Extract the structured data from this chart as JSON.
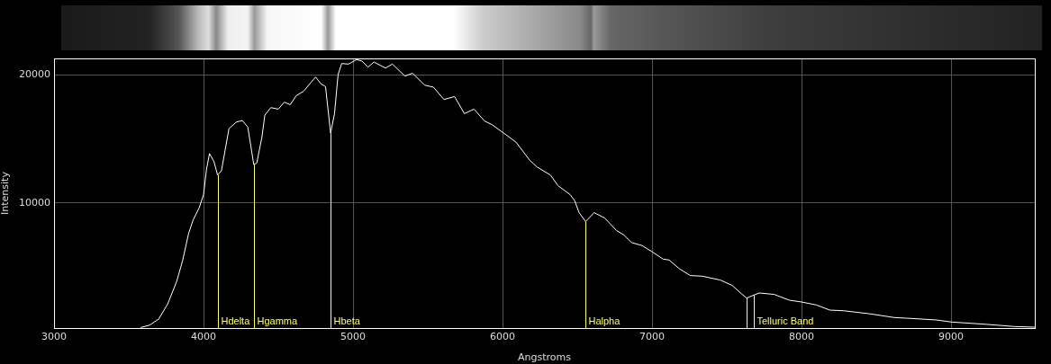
{
  "chart_data": {
    "type": "line",
    "xlabel": "Angstroms",
    "ylabel": "Intensity",
    "x": [
      3580,
      3640,
      3700,
      3760,
      3820,
      3860,
      3900,
      3930,
      3970,
      4000,
      4020,
      4040,
      4070,
      4094,
      4120,
      4170,
      4220,
      4260,
      4296,
      4336,
      4356,
      4390,
      4410,
      4450,
      4500,
      4540,
      4580,
      4620,
      4670,
      4720,
      4750,
      4784,
      4816,
      4850,
      4876,
      4900,
      4924,
      4970,
      5024,
      5060,
      5100,
      5140,
      5217,
      5263,
      5347,
      5398,
      5478,
      5538,
      5608,
      5679,
      5745,
      5809,
      5880,
      5930,
      6000,
      6090,
      6181,
      6231,
      6321,
      6371,
      6452,
      6482,
      6512,
      6556,
      6612,
      6683,
      6763,
      6813,
      6863,
      6934,
      7004,
      7074,
      7114,
      7185,
      7255,
      7335,
      7456,
      7536,
      7596,
      7633,
      7681,
      7717,
      7817,
      7918,
      8000,
      8098,
      8189,
      8279,
      8450,
      8620,
      8701,
      8902,
      9002,
      9223,
      9424,
      9560
    ],
    "series": [
      {
        "color": "#ffffff",
        "values": [
          300,
          490,
          960,
          2130,
          3880,
          5510,
          7620,
          8670,
          9600,
          10650,
          12640,
          13850,
          13220,
          12170,
          12520,
          15790,
          16310,
          16420,
          15910,
          12990,
          13110,
          15090,
          16840,
          17430,
          17310,
          17850,
          17660,
          18360,
          18710,
          19410,
          19810,
          19300,
          19060,
          15440,
          16960,
          20000,
          20860,
          20820,
          21170,
          21050,
          20580,
          20980,
          20510,
          20820,
          19880,
          20110,
          19180,
          19020,
          18060,
          18290,
          16960,
          17310,
          16380,
          16100,
          15510,
          14740,
          13340,
          12800,
          12170,
          11350,
          10650,
          10190,
          9250,
          8550,
          9250,
          8830,
          7850,
          7500,
          6920,
          6680,
          6170,
          5630,
          5560,
          4860,
          4350,
          4300,
          4000,
          3580,
          2950,
          2590,
          2830,
          2990,
          2880,
          2430,
          2290,
          2060,
          1660,
          1610,
          1380,
          1080,
          1030,
          890,
          730,
          560,
          380,
          330
        ]
      }
    ],
    "xlim": [
      3000,
      9560
    ],
    "ylim": [
      260,
      21260
    ],
    "xticks": [
      3000,
      4000,
      5000,
      6000,
      7000,
      8000,
      9000
    ],
    "yticks": [
      10000,
      20000
    ],
    "grid": true,
    "legend": false,
    "ref_lines": [
      {
        "axis": "x",
        "value": 4094,
        "label": "Hdelta",
        "color": "#ffff66"
      },
      {
        "axis": "x",
        "value": 4336,
        "label": "Hgamma",
        "color": "#ffff66"
      },
      {
        "axis": "x",
        "value": 4850,
        "label": "Hbeta",
        "color": "#ffff66"
      },
      {
        "axis": "x",
        "value": 6556,
        "label": "Halpha",
        "color": "#ffff66"
      },
      {
        "axis": "x",
        "value": 7633,
        "color": "#ffff66"
      },
      {
        "axis": "x",
        "value": 7681,
        "label": "Telluric Band",
        "color": "#ffff66"
      }
    ]
  }
}
